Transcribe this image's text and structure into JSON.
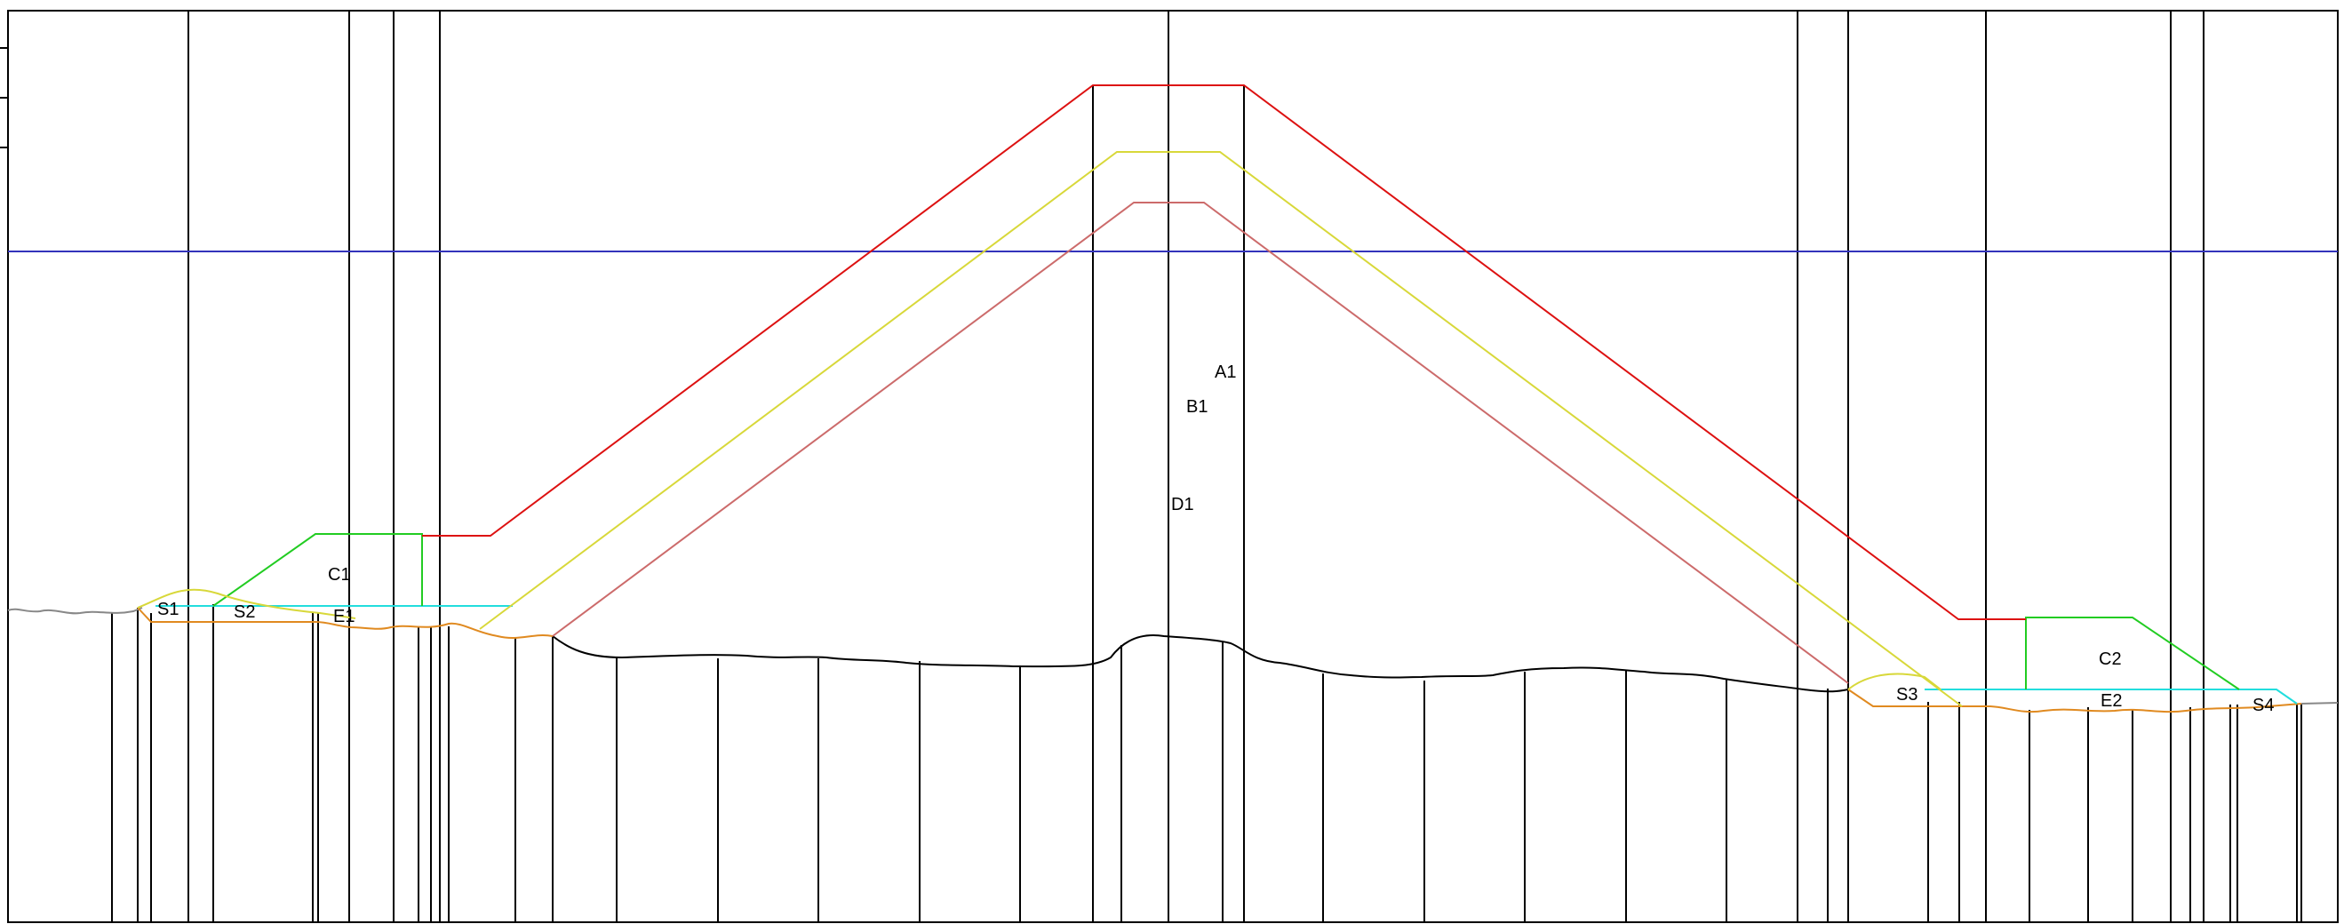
{
  "labels": {
    "A1": "A1",
    "B1": "B1",
    "D1": "D1",
    "C1": "C1",
    "C2": "C2",
    "E1": "E1",
    "E2": "E2",
    "S1": "S1",
    "S2": "S2",
    "S3": "S3",
    "S4": "S4"
  },
  "colors": {
    "frame": "#000000",
    "water_level": "#3333bb",
    "outer_slope": "#dd1111",
    "middle_slope": "#d8d83a",
    "inner_slope": "#cc6b6b",
    "berm": "#22cc22",
    "cyan_level": "#22dddd",
    "excavation": "#e08a20",
    "ground": "#000000",
    "ground_edge": "#888888"
  }
}
